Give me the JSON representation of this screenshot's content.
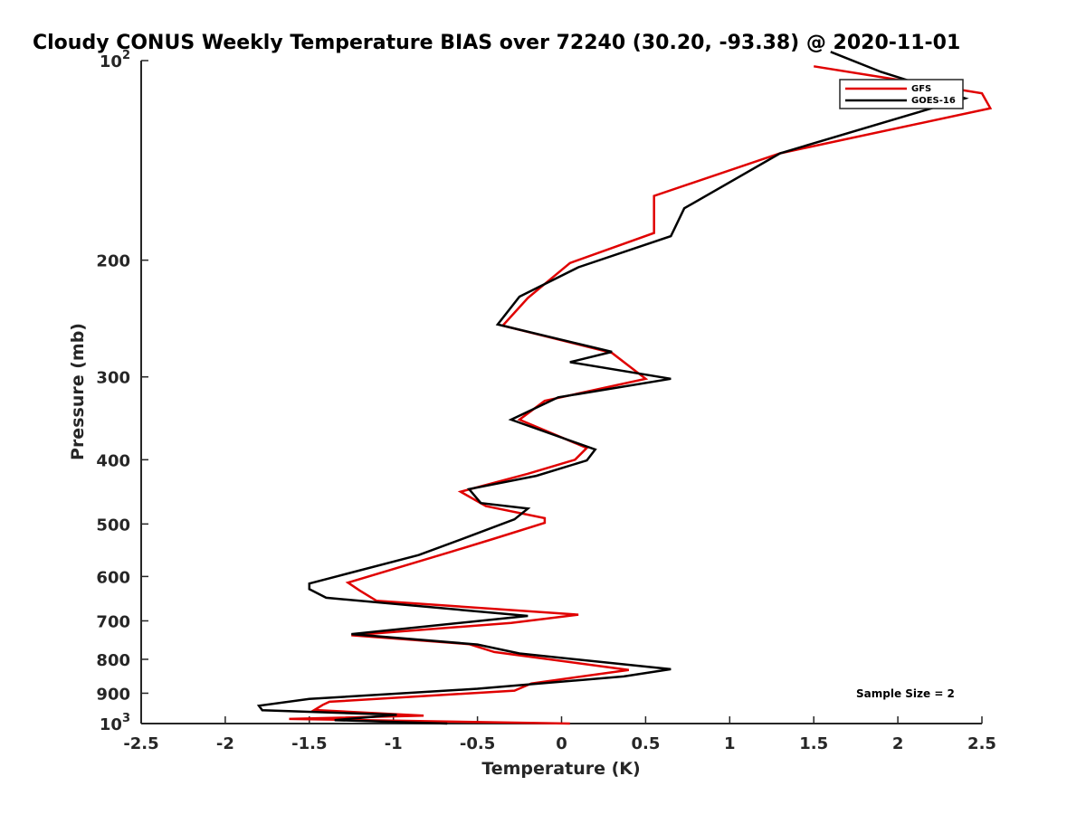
{
  "chart_data": {
    "type": "line",
    "title": "Cloudy CONUS Weekly Temperature BIAS over 72240 (30.20, -93.38) @ 2020-11-01",
    "xlabel": "Temperature (K)",
    "ylabel": "Pressure (mb)",
    "xlim": [
      -2.5,
      2.5
    ],
    "ylim": [
      100,
      1000
    ],
    "y_scale": "log",
    "y_reversed": true,
    "grid": false,
    "legend_position": "top-right",
    "annotation": "Sample Size = 2",
    "x_ticks": [
      {
        "value": -2.5,
        "label": "-2.5"
      },
      {
        "value": -2,
        "label": "-2"
      },
      {
        "value": -1.5,
        "label": "-1.5"
      },
      {
        "value": -1,
        "label": "-1"
      },
      {
        "value": -0.5,
        "label": "-0.5"
      },
      {
        "value": 0,
        "label": "0"
      },
      {
        "value": 0.5,
        "label": "0.5"
      },
      {
        "value": 1,
        "label": "1"
      },
      {
        "value": 1.5,
        "label": "1.5"
      },
      {
        "value": 2,
        "label": "2"
      },
      {
        "value": 2.5,
        "label": "2.5"
      }
    ],
    "y_ticks": [
      {
        "value": 100,
        "label": "10",
        "sup": "2"
      },
      {
        "value": 200,
        "label": "200"
      },
      {
        "value": 300,
        "label": "300"
      },
      {
        "value": 400,
        "label": "400"
      },
      {
        "value": 500,
        "label": "500"
      },
      {
        "value": 600,
        "label": "600"
      },
      {
        "value": 700,
        "label": "700"
      },
      {
        "value": 800,
        "label": "800"
      },
      {
        "value": 900,
        "label": "900"
      },
      {
        "value": 1000,
        "label": "10",
        "sup": "3"
      }
    ],
    "series": [
      {
        "name": "GFS",
        "color": "#e00000",
        "points": [
          [
            0.05,
            1000
          ],
          [
            -1.62,
            984
          ],
          [
            -0.82,
            973
          ],
          [
            -1.47,
            954
          ],
          [
            -1.42,
            937
          ],
          [
            -1.38,
            927
          ],
          [
            -0.28,
            892
          ],
          [
            -0.18,
            870
          ],
          [
            0.4,
            830
          ],
          [
            -0.4,
            780
          ],
          [
            -0.55,
            759
          ],
          [
            -1.25,
            736
          ],
          [
            -0.3,
            705
          ],
          [
            0.1,
            685
          ],
          [
            -1.1,
            653
          ],
          [
            -1.2,
            630
          ],
          [
            -1.27,
            613
          ],
          [
            -0.65,
            550
          ],
          [
            -0.4,
            526
          ],
          [
            -0.1,
            498
          ],
          [
            -0.1,
            490
          ],
          [
            -0.45,
            470
          ],
          [
            -0.6,
            447
          ],
          [
            -0.2,
            420
          ],
          [
            0.08,
            400
          ],
          [
            0.15,
            384
          ],
          [
            -0.25,
            348
          ],
          [
            -0.1,
            326
          ],
          [
            0.5,
            302
          ],
          [
            0.3,
            276
          ],
          [
            -0.35,
            251
          ],
          [
            -0.2,
            228
          ],
          [
            0.05,
            202
          ],
          [
            0.55,
            182
          ],
          [
            0.55,
            160
          ],
          [
            1.3,
            138
          ],
          [
            2.55,
            118
          ],
          [
            2.5,
            112
          ],
          [
            1.5,
            102
          ]
        ]
      },
      {
        "name": "GOES-16",
        "color": "#000000",
        "points": [
          [
            -0.68,
            1000
          ],
          [
            -1.35,
            988
          ],
          [
            -0.98,
            970
          ],
          [
            -1.78,
            955
          ],
          [
            -1.8,
            940
          ],
          [
            -1.5,
            918
          ],
          [
            -0.5,
            886
          ],
          [
            0.37,
            849
          ],
          [
            0.65,
            828
          ],
          [
            -0.25,
            784
          ],
          [
            -0.5,
            760
          ],
          [
            -1.25,
            733
          ],
          [
            -0.2,
            688
          ],
          [
            -1.4,
            646
          ],
          [
            -1.5,
            627
          ],
          [
            -1.5,
            615
          ],
          [
            -0.85,
            557
          ],
          [
            -0.55,
            522
          ],
          [
            -0.28,
            492
          ],
          [
            -0.2,
            474
          ],
          [
            -0.48,
            465
          ],
          [
            -0.55,
            443
          ],
          [
            -0.15,
            423
          ],
          [
            0.15,
            401
          ],
          [
            0.2,
            386
          ],
          [
            -0.3,
            348
          ],
          [
            -0.02,
            322
          ],
          [
            0.65,
            302
          ],
          [
            0.05,
            285
          ],
          [
            0.3,
            275
          ],
          [
            -0.38,
            250
          ],
          [
            -0.25,
            227
          ],
          [
            0.1,
            205
          ],
          [
            0.65,
            184
          ],
          [
            0.73,
            167
          ],
          [
            1.3,
            138
          ],
          [
            2.4,
            114
          ],
          [
            1.9,
            104
          ],
          [
            1.6,
            97
          ]
        ]
      }
    ]
  }
}
